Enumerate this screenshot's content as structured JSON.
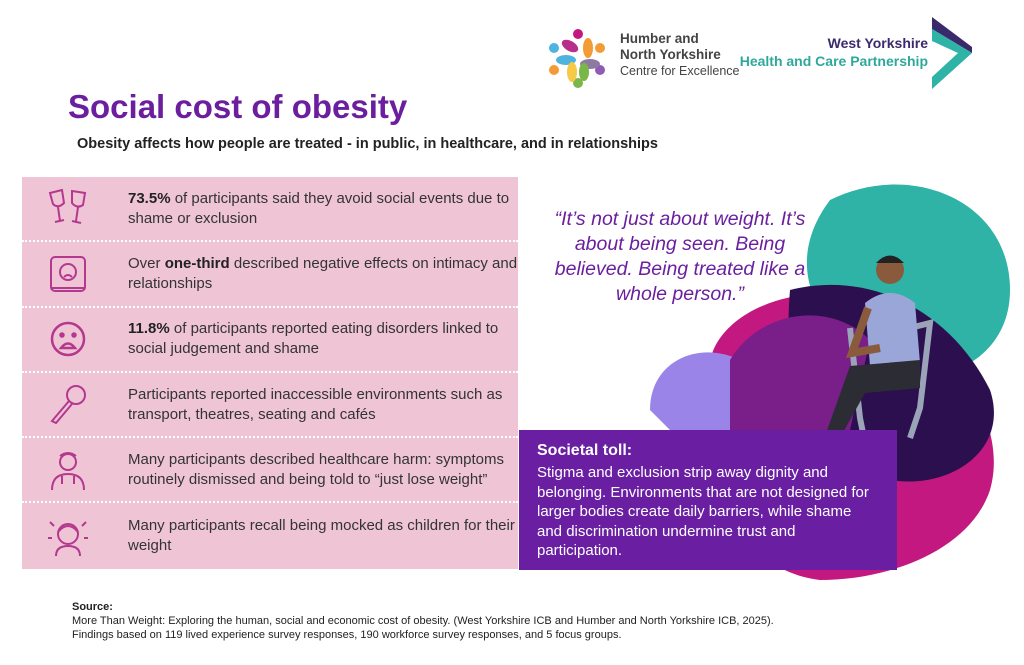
{
  "logos": {
    "hny": {
      "line1": "Humber and",
      "line2": "North Yorkshire",
      "line3": "Centre for Excellence"
    },
    "wy": {
      "line1": "West Yorkshire",
      "line2": "Health and Care Partnership"
    }
  },
  "header": {
    "title": "Social cost of obesity",
    "subtitle": "Obesity affects how people are treated - in public, in healthcare, and in relationships"
  },
  "findings": [
    {
      "icon": "wine-glasses-icon",
      "bold": "73.5%",
      "text": " of participants said they avoid social events due to shame or exclusion"
    },
    {
      "icon": "sad-person-icon",
      "pre": "Over ",
      "bold": "one-third",
      "text": " described negative effects on intimacy and relationships"
    },
    {
      "icon": "distressed-face-icon",
      "bold": "11.8%",
      "text": " of participants reported eating disorders linked to social judgement and shame"
    },
    {
      "icon": "microphone-icon",
      "text": "Participants reported inaccessible environments such as transport, theatres, seating and cafés"
    },
    {
      "icon": "doctor-icon",
      "text": "Many participants described healthcare harm: symptoms routinely dismissed and being told to “just lose weight”"
    },
    {
      "icon": "stressed-child-icon",
      "text": "Many participants recall being mocked as children for their weight"
    }
  ],
  "quote": "“It’s not just about weight. It’s about being seen. Being believed. Being treated like a whole person.”",
  "toll": {
    "heading": "Societal toll:",
    "body": "Stigma and exclusion strip away dignity and belonging. Environments that are not designed for larger bodies create daily barriers, while shame and discrimination undermine trust and participation."
  },
  "source": {
    "label": "Source:",
    "line1": "More Than Weight: Exploring the human, social and economic cost of obesity. (West Yorkshire ICB and Humber and North Yorkshire ICB, 2025).",
    "line2": "Findings based on 119 lived experience survey responses, 190 workforce survey responses, and 5 focus groups."
  },
  "colors": {
    "purple": "#6b1f9e",
    "pink_panel": "#efc5d6",
    "icon": "#b5388f",
    "teal": "#2fb3a6",
    "magenta": "#c2187f"
  }
}
